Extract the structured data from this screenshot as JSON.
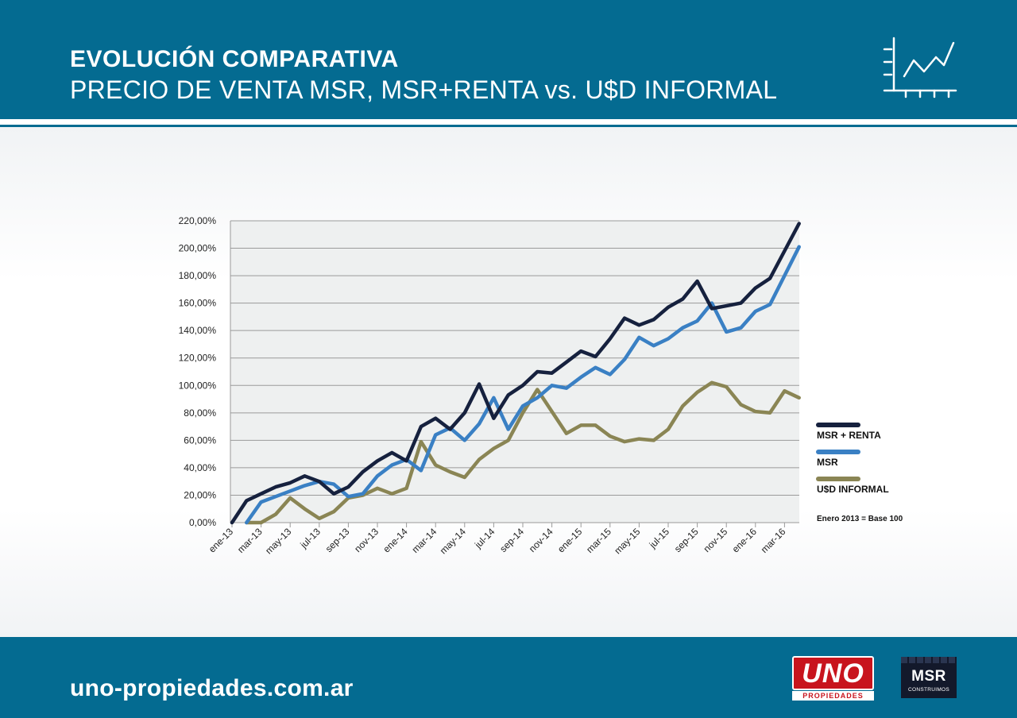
{
  "header": {
    "title": "EVOLUCIÓN COMPARATIVA",
    "subtitle": "PRECIO DE VENTA MSR, MSR+RENTA vs. U$D INFORMAL",
    "icon": "line-chart-icon"
  },
  "footer": {
    "website": "uno-propiedades.com.ar",
    "logo_uno_main": "UNO",
    "logo_uno_sub": "PROPIEDADES",
    "logo_msr_main": "MSR",
    "logo_msr_sub": "CONSTRUIMOS"
  },
  "colors": {
    "brand_blue": "#046b91",
    "msr_renta": "#16213e",
    "msr": "#3a80c4",
    "usd_informal": "#8a8554"
  },
  "chart_data": {
    "type": "line",
    "note": "Enero 2013 = Base 100",
    "ylim": [
      0,
      220
    ],
    "ytick_labels": [
      "0,00%",
      "20,00%",
      "40,00%",
      "60,00%",
      "80,00%",
      "100,00%",
      "120,00%",
      "140,00%",
      "160,00%",
      "180,00%",
      "200,00%",
      "220,00%"
    ],
    "xtick_labels": [
      "ene-13",
      "mar-13",
      "may-13",
      "jul-13",
      "sep-13",
      "nov-13",
      "ene-14",
      "mar-14",
      "may-14",
      "jul-14",
      "sep-14",
      "nov-14",
      "ene-15",
      "mar-15",
      "may-15",
      "jul-15",
      "sep-15",
      "nov-15",
      "ene-16",
      "mar-16"
    ],
    "grid": true,
    "legend_position": "right",
    "series": [
      {
        "name": "MSR + RENTA",
        "color": "#16213e",
        "start_index": 0,
        "values": [
          0,
          16,
          21,
          26,
          29,
          34,
          30,
          21,
          26,
          37,
          45,
          51,
          45,
          70,
          76,
          68,
          80,
          101,
          76,
          93,
          100,
          110,
          109,
          117,
          125,
          121,
          134,
          149,
          144,
          148,
          157,
          163,
          176,
          156,
          158,
          160,
          171,
          178,
          198,
          218
        ]
      },
      {
        "name": "MSR",
        "color": "#3a80c4",
        "start_index": 1,
        "values": [
          0,
          15,
          19,
          23,
          27,
          30,
          28,
          19,
          21,
          34,
          42,
          46,
          38,
          64,
          69,
          60,
          72,
          91,
          68,
          85,
          91,
          100,
          98,
          106,
          113,
          108,
          119,
          135,
          129,
          134,
          142,
          147,
          160,
          139,
          142,
          154,
          159,
          180,
          201
        ]
      },
      {
        "name": "U$D INFORMAL",
        "color": "#8a8554",
        "start_index": 1,
        "values": [
          0,
          0,
          6,
          18,
          10,
          3,
          8,
          18,
          20,
          25,
          21,
          25,
          59,
          42,
          37,
          33,
          46,
          54,
          60,
          80,
          97,
          81,
          65,
          71,
          71,
          63,
          59,
          61,
          60,
          68,
          85,
          95,
          102,
          99,
          86,
          81,
          80,
          96,
          91
        ]
      }
    ]
  }
}
